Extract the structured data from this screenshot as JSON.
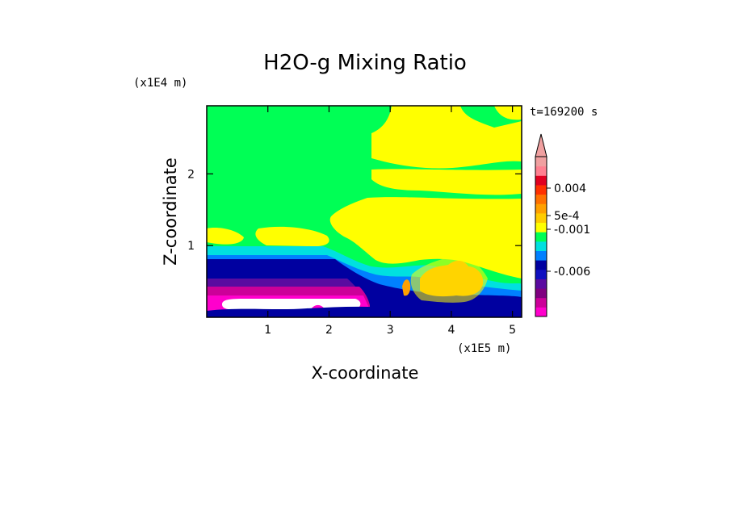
{
  "chart_data": {
    "type": "heatmap",
    "title": "H2O-g Mixing Ratio",
    "xlabel": "X-coordinate",
    "ylabel": "Z-coordinate",
    "x_unit": "(x1E5 m)",
    "y_unit": "(x1E4 m)",
    "time_label": "t=169200 s",
    "xlim": [
      0,
      5.15
    ],
    "ylim": [
      0,
      2.95
    ],
    "x_ticks": [
      "1",
      "2",
      "3",
      "4",
      "5"
    ],
    "x_tick_values": [
      1,
      2,
      3,
      4,
      5
    ],
    "y_ticks": [
      "1",
      "2"
    ],
    "y_tick_values": [
      1,
      2
    ],
    "colorbar": {
      "labels": [
        "0.004",
        "5e-4",
        "-0.001",
        "-0.006"
      ],
      "colors": [
        "#ff00cc",
        "#cc0099",
        "#800080",
        "#5a0ba0",
        "#1010c0",
        "#0000a0",
        "#0080ff",
        "#00e0e0",
        "#00ff55",
        "#ffff00",
        "#ffcc00",
        "#ffa000",
        "#ff7000",
        "#ff3000",
        "#e00020",
        "#ff8090",
        "#f0a0a0"
      ],
      "extend_top_color": "#f0a0a0"
    },
    "colors": {
      "background_field": "#00ff55",
      "high": "#ffff00",
      "peak": "#ffa000",
      "low_band_1": "#00e0e0",
      "low_band_2": "#0080ff",
      "low_band_3": "#0000a0",
      "low_band_4": "#5a0ba0",
      "low_band_5": "#cc0099",
      "low_band_6": "#ff00cc",
      "blank": "#ffffff"
    }
  }
}
